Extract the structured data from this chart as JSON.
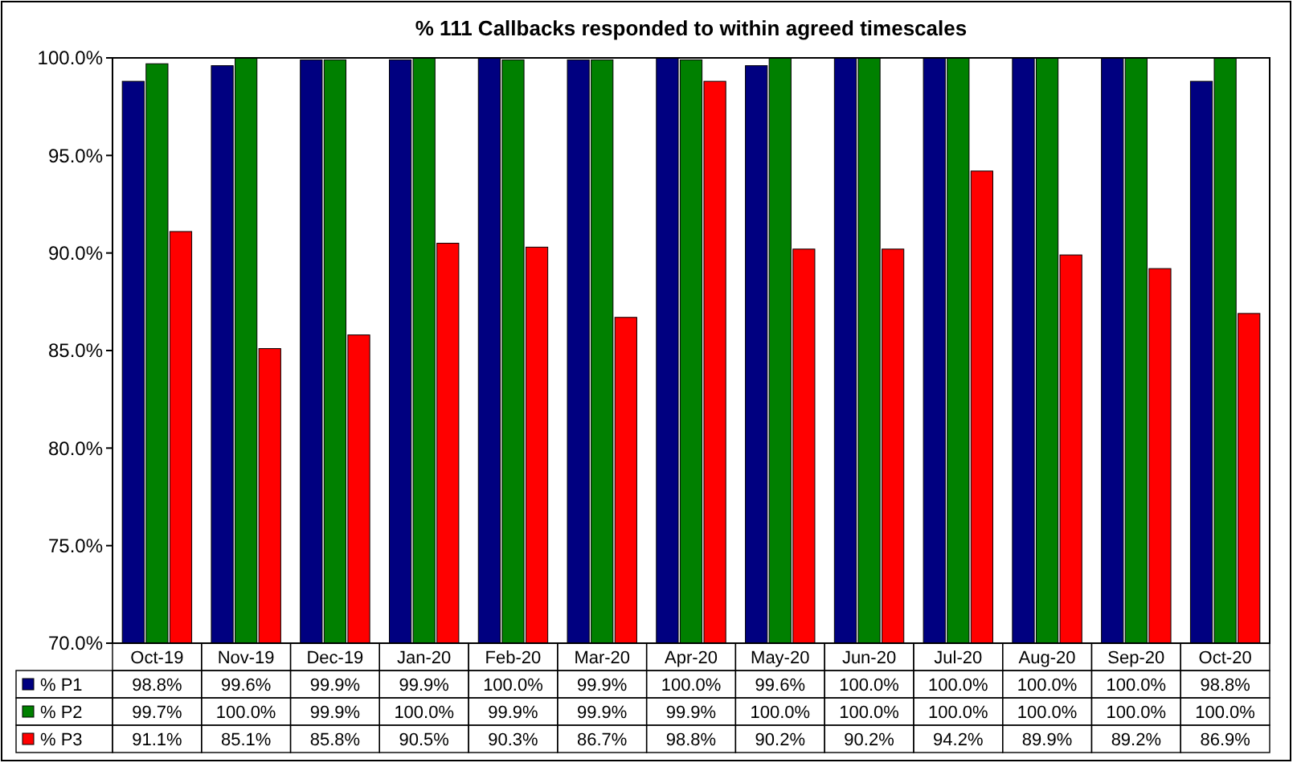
{
  "chart_data": {
    "type": "bar",
    "title": "% 111 Callbacks responded to within agreed timescales",
    "categories": [
      "Oct-19",
      "Nov-19",
      "Dec-19",
      "Jan-20",
      "Feb-20",
      "Mar-20",
      "Apr-20",
      "May-20",
      "Jun-20",
      "Jul-20",
      "Aug-20",
      "Sep-20",
      "Oct-20"
    ],
    "ylim": [
      70,
      100
    ],
    "yticks": [
      {
        "value": 70,
        "label": "70.0%"
      },
      {
        "value": 75,
        "label": "75.0%"
      },
      {
        "value": 80,
        "label": "80.0%"
      },
      {
        "value": 85,
        "label": "85.0%"
      },
      {
        "value": 90,
        "label": "90.0%"
      },
      {
        "value": 95,
        "label": "95.0%"
      },
      {
        "value": 100,
        "label": "100.0%"
      }
    ],
    "legend": "bottom left",
    "series": [
      {
        "name": "% P1",
        "color": "#000080",
        "values": [
          98.8,
          99.6,
          99.9,
          99.9,
          100.0,
          99.9,
          100.0,
          99.6,
          100.0,
          100.0,
          100.0,
          100.0,
          98.8
        ],
        "value_labels": [
          "98.8%",
          "99.6%",
          "99.9%",
          "99.9%",
          "100.0%",
          "99.9%",
          "100.0%",
          "99.6%",
          "100.0%",
          "100.0%",
          "100.0%",
          "100.0%",
          "98.8%"
        ]
      },
      {
        "name": "% P2",
        "color": "#008000",
        "values": [
          99.7,
          100.0,
          99.9,
          100.0,
          99.9,
          99.9,
          99.9,
          100.0,
          100.0,
          100.0,
          100.0,
          100.0,
          100.0
        ],
        "value_labels": [
          "99.7%",
          "100.0%",
          "99.9%",
          "100.0%",
          "99.9%",
          "99.9%",
          "99.9%",
          "100.0%",
          "100.0%",
          "100.0%",
          "100.0%",
          "100.0%",
          "100.0%"
        ]
      },
      {
        "name": "% P3",
        "color": "#ff0000",
        "values": [
          91.1,
          85.1,
          85.8,
          90.5,
          90.3,
          86.7,
          98.8,
          90.2,
          90.2,
          94.2,
          89.9,
          89.2,
          86.9
        ],
        "value_labels": [
          "91.1%",
          "85.1%",
          "85.8%",
          "90.5%",
          "90.3%",
          "86.7%",
          "98.8%",
          "90.2%",
          "90.2%",
          "94.2%",
          "89.9%",
          "89.2%",
          "86.9%"
        ]
      }
    ]
  }
}
